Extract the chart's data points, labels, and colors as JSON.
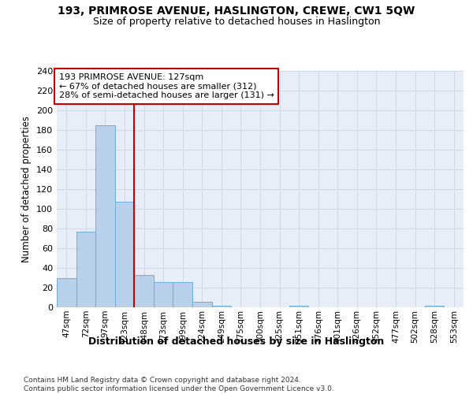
{
  "title": "193, PRIMROSE AVENUE, HASLINGTON, CREWE, CW1 5QW",
  "subtitle": "Size of property relative to detached houses in Haslington",
  "xlabel": "Distribution of detached houses by size in Haslington",
  "ylabel": "Number of detached properties",
  "bar_labels": [
    "47sqm",
    "72sqm",
    "97sqm",
    "123sqm",
    "148sqm",
    "173sqm",
    "199sqm",
    "224sqm",
    "249sqm",
    "275sqm",
    "300sqm",
    "325sqm",
    "351sqm",
    "376sqm",
    "401sqm",
    "426sqm",
    "452sqm",
    "477sqm",
    "502sqm",
    "528sqm",
    "553sqm"
  ],
  "bar_values": [
    30,
    77,
    185,
    107,
    33,
    26,
    26,
    6,
    2,
    0,
    0,
    0,
    2,
    0,
    0,
    0,
    0,
    0,
    0,
    2,
    0
  ],
  "bar_color": "#b8d0ea",
  "bar_edge_color": "#6baed6",
  "vline_color": "#cc0000",
  "annotation_text": "193 PRIMROSE AVENUE: 127sqm\n← 67% of detached houses are smaller (312)\n28% of semi-detached houses are larger (131) →",
  "annotation_box_color": "#ffffff",
  "annotation_box_edge_color": "#cc0000",
  "ylim": [
    0,
    240
  ],
  "yticks": [
    0,
    20,
    40,
    60,
    80,
    100,
    120,
    140,
    160,
    180,
    200,
    220,
    240
  ],
  "grid_color": "#d0d8e8",
  "bg_color": "#e8eef8",
  "footer": "Contains HM Land Registry data © Crown copyright and database right 2024.\nContains public sector information licensed under the Open Government Licence v3.0."
}
